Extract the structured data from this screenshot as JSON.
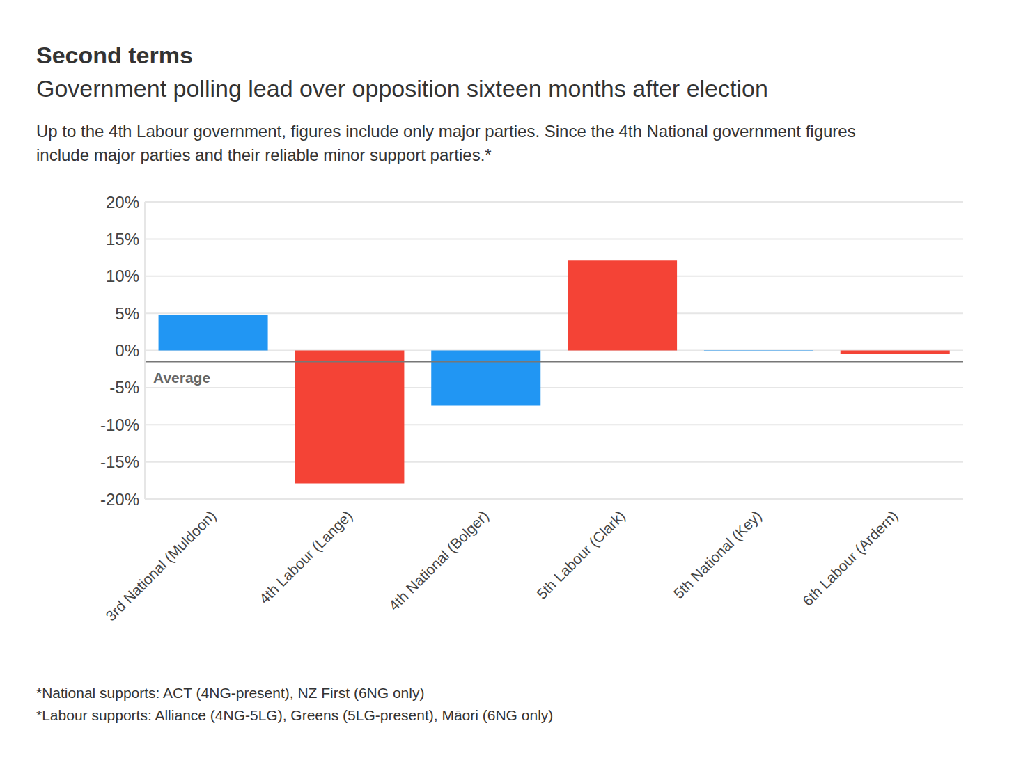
{
  "chart_data": {
    "type": "bar",
    "title": "Second terms",
    "subtitle": "Government polling lead over opposition sixteen months after election",
    "description": "Up to the 4th Labour government, figures include only major parties. Since the 4th National government figures include major parties and their reliable minor support parties.*",
    "categories": [
      "3rd National (Muldoon)",
      "4th Labour (Lange)",
      "4th National (Bolger)",
      "5th Labour (Clark)",
      "5th National (Key)",
      "6th Labour (Ardern)"
    ],
    "values": [
      4.8,
      -17.9,
      -7.4,
      12.1,
      -0.1,
      -0.5
    ],
    "colors": [
      "#2196f3",
      "#f44336",
      "#2196f3",
      "#f44336",
      "#2196f3",
      "#f44336"
    ],
    "ylim": [
      -20,
      20
    ],
    "yticks": [
      {
        "value": -20,
        "label": "-20%"
      },
      {
        "value": -15,
        "label": "-15%"
      },
      {
        "value": -10,
        "label": "-10%"
      },
      {
        "value": -5,
        "label": "-5%"
      },
      {
        "value": 0,
        "label": "0%"
      },
      {
        "value": 5,
        "label": "5%"
      },
      {
        "value": 10,
        "label": "10%"
      },
      {
        "value": 15,
        "label": "15%"
      },
      {
        "value": 20,
        "label": "20%"
      }
    ],
    "grid": true,
    "average_line": {
      "value": -1.5,
      "label": "Average"
    },
    "notes": [
      "*National supports: ACT (4NG-present), NZ First (6NG only)",
      "*Labour supports: Alliance (4NG-5LG), Greens (5LG-present), Māori (6NG only)"
    ]
  }
}
